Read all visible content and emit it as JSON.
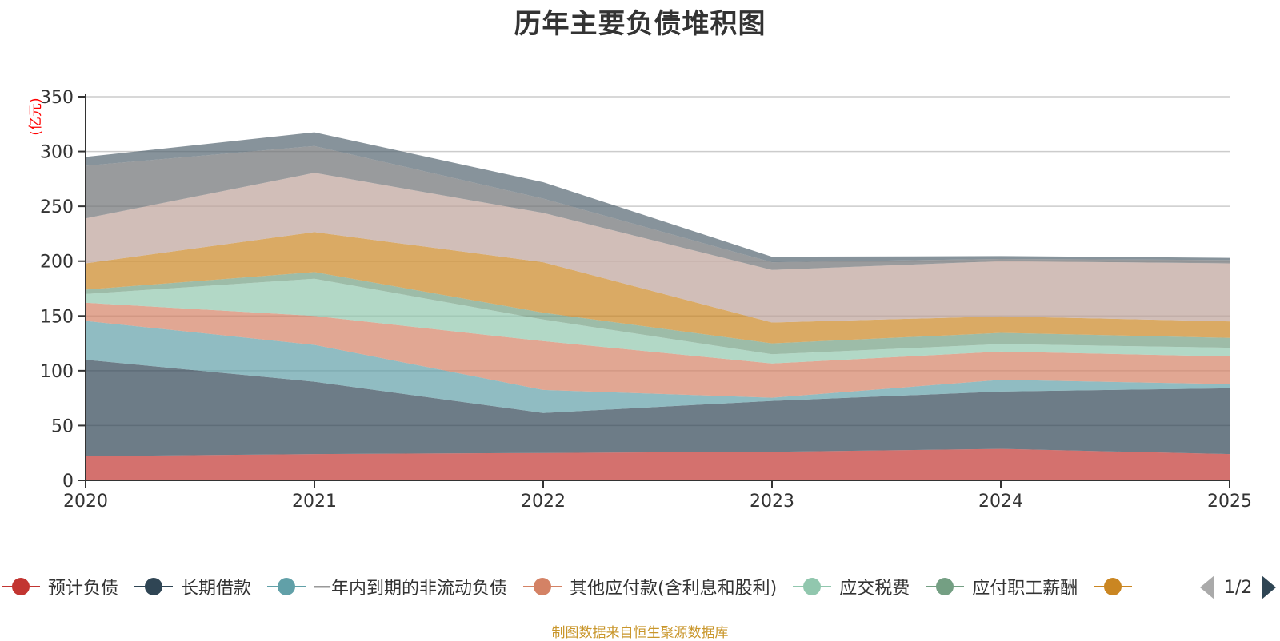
{
  "chart_data": {
    "type": "area",
    "stacked": true,
    "title": "历年主要负债堆积图",
    "ylabel": "(亿元)",
    "xlabel": "",
    "x": [
      "2020",
      "2021",
      "2022",
      "2023",
      "2024",
      "2025"
    ],
    "ylim": [
      0,
      350
    ],
    "yticks": [
      0,
      50,
      100,
      150,
      200,
      250,
      300,
      350
    ],
    "grid": true,
    "legend_position": "bottom",
    "series": [
      {
        "name": "预计负债",
        "color": "#c23531",
        "values": [
          22,
          24,
          25,
          26,
          28.7,
          24
        ]
      },
      {
        "name": "长期借款",
        "color": "#2f4554",
        "values": [
          88,
          66,
          36.5,
          46.5,
          52.3,
          60
        ]
      },
      {
        "name": "一年内到期的非流动负债",
        "color": "#61a0a8",
        "values": [
          35.5,
          33.6,
          21,
          2.9,
          10.7,
          3.8
        ]
      },
      {
        "name": "其他应付款(含利息和股利)",
        "color": "#d48265",
        "values": [
          16.5,
          26.4,
          44.5,
          31.2,
          25.8,
          25.2
        ]
      },
      {
        "name": "应交税费",
        "color": "#91c7ae",
        "values": [
          8,
          34,
          19.7,
          8.4,
          6.8,
          8
        ]
      },
      {
        "name": "应付职工薪酬",
        "color": "#749f83",
        "values": [
          4,
          6,
          6.3,
          10,
          10.2,
          9
        ]
      },
      {
        "name": "",
        "color": "#ca8622",
        "values": [
          24,
          36.5,
          46,
          19,
          15.1,
          15
        ]
      },
      {
        "name": "",
        "color": "#bda29a",
        "values": [
          41,
          54,
          45,
          48,
          50.4,
          53
        ]
      },
      {
        "name": "",
        "color": "#6e7074",
        "values": [
          48,
          24.5,
          13,
          7,
          2,
          3
        ]
      },
      {
        "name": "",
        "color": "#546570",
        "values": [
          8,
          12.5,
          15,
          5,
          2.6,
          2
        ]
      }
    ]
  },
  "legend": {
    "items": [
      {
        "label": "预计负债",
        "color": "#c23531"
      },
      {
        "label": "长期借款",
        "color": "#2f4554"
      },
      {
        "label": "一年内到期的非流动负债",
        "color": "#61a0a8"
      },
      {
        "label": "其他应付款(含利息和股利)",
        "color": "#d48265"
      },
      {
        "label": "应交税费",
        "color": "#91c7ae"
      },
      {
        "label": "应付职工薪酬",
        "color": "#749f83"
      },
      {
        "label": "",
        "color": "#ca8622"
      }
    ],
    "page": "1/2"
  },
  "footer": "制图数据来自恒生聚源数据库"
}
